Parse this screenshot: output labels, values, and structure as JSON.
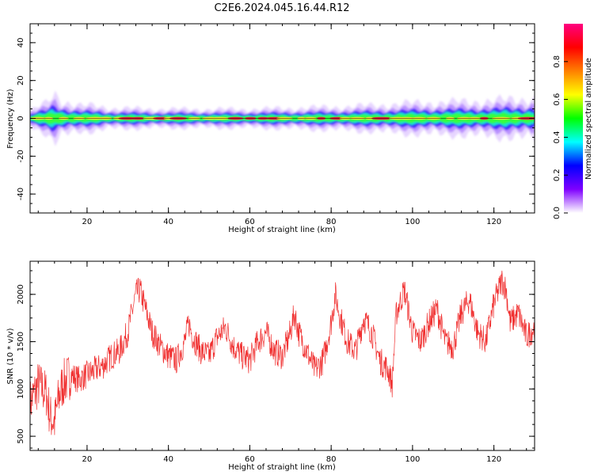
{
  "title": "C2E6.2024.045.16.44.R12",
  "colors": {
    "snr_line": "#f03030",
    "frame": "#000000",
    "baseline": "#000000"
  },
  "chart_data": [
    {
      "type": "heatmap",
      "xlabel": "Height of straight line (km)",
      "ylabel": "Frequency (Hz)",
      "xlim": [
        6,
        130
      ],
      "ylim": [
        -50,
        50
      ],
      "x_ticks": [
        20,
        40,
        60,
        80,
        100,
        120
      ],
      "y_ticks": [
        -40,
        -20,
        0,
        20,
        40
      ],
      "x_tick_labels": [
        "20",
        "40",
        "60",
        "80",
        "100",
        "120"
      ],
      "y_tick_labels": [
        "-40",
        "-20",
        "0",
        "20",
        "40"
      ],
      "grid": false,
      "description_band": "energy concentrated near 0 Hz across all heights",
      "band_halfwidth_hz": [
        [
          6,
          1.5
        ],
        [
          10,
          3
        ],
        [
          12,
          5
        ],
        [
          14,
          3.5
        ],
        [
          18,
          2.5
        ],
        [
          22,
          2.5
        ],
        [
          26,
          2
        ],
        [
          40,
          1.8
        ],
        [
          60,
          1.8
        ],
        [
          80,
          2.2
        ],
        [
          90,
          2.5
        ],
        [
          100,
          3
        ],
        [
          110,
          3.2
        ],
        [
          120,
          3.5
        ],
        [
          130,
          4
        ]
      ],
      "colorbar": {
        "label": "Normalized spectral amplitude",
        "range": [
          0.0,
          1.0
        ],
        "ticks": [
          0.0,
          0.2,
          0.4,
          0.6,
          0.8
        ],
        "tick_labels": [
          "0.0",
          "0.2",
          "0.4",
          "0.6",
          "0.8"
        ],
        "colors": [
          "#ffffff",
          "#7f00ff",
          "#0000ff",
          "#00ffff",
          "#00ff00",
          "#ffff00",
          "#ff8000",
          "#ff0000",
          "#ff0080"
        ]
      }
    },
    {
      "type": "line",
      "xlabel": "Height of straight line (km)",
      "ylabel": "SNR (10 * v/v)",
      "xlim": [
        6,
        130
      ],
      "ylim": [
        350,
        2350
      ],
      "x_ticks": [
        20,
        40,
        60,
        80,
        100,
        120
      ],
      "y_ticks": [
        500,
        1000,
        1500,
        2000
      ],
      "x_tick_labels": [
        "20",
        "40",
        "60",
        "80",
        "100",
        "120"
      ],
      "y_tick_labels": [
        "500",
        "1000",
        "1500",
        "2000"
      ],
      "grid": false,
      "series": [
        {
          "x": [
            6,
            8,
            10,
            11,
            12,
            13,
            14,
            16,
            18,
            20,
            22,
            24,
            26,
            28,
            30,
            31,
            32,
            33,
            34,
            36,
            38,
            40,
            42,
            44,
            45,
            46,
            48,
            50,
            52,
            54,
            56,
            58,
            60,
            62,
            64,
            66,
            68,
            70,
            71,
            72,
            74,
            76,
            78,
            80,
            81,
            82,
            84,
            86,
            88,
            90,
            92,
            94,
            95,
            96,
            98,
            100,
            102,
            104,
            106,
            108,
            110,
            112,
            114,
            116,
            118,
            120,
            122,
            123,
            124,
            126,
            128,
            130
          ],
          "y": [
            850,
            1050,
            950,
            700,
            650,
            900,
            1050,
            1150,
            1100,
            1150,
            1200,
            1250,
            1350,
            1400,
            1600,
            1800,
            2000,
            2050,
            1900,
            1600,
            1450,
            1350,
            1300,
            1500,
            1700,
            1550,
            1400,
            1350,
            1550,
            1650,
            1450,
            1350,
            1300,
            1500,
            1600,
            1400,
            1350,
            1600,
            1800,
            1600,
            1400,
            1200,
            1300,
            1700,
            2000,
            1800,
            1500,
            1400,
            1750,
            1600,
            1300,
            1200,
            1050,
            1800,
            2050,
            1600,
            1500,
            1700,
            1850,
            1500,
            1450,
            1800,
            1950,
            1600,
            1500,
            1900,
            2150,
            2050,
            1700,
            1800,
            1550,
            1650
          ]
        }
      ]
    }
  ]
}
